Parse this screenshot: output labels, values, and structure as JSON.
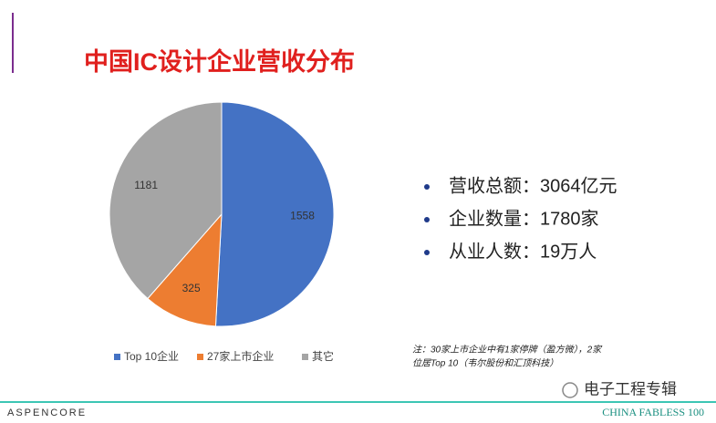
{
  "chart_data": {
    "type": "pie",
    "title": "中国IC设计企业营收分布",
    "categories": [
      "Top 10企业",
      "27家上市企业",
      "其它"
    ],
    "values": [
      1558,
      325,
      1181
    ],
    "colors": [
      "#4472c4",
      "#ed7d31",
      "#a5a5a5"
    ],
    "legend": "bottom"
  },
  "bullets": [
    "营收总额：3064亿元",
    "企业数量：1780家",
    "从业人数：19万人"
  ],
  "note": [
    "注：30家上市企业中有1家停牌（盈方微），2家",
    "位居Top 10（韦尔股份和汇顶科技）"
  ],
  "footer": {
    "brand": "ASPENCORE",
    "product": "CHINA FABLESS 100",
    "watermark": "电子工程专辑"
  }
}
